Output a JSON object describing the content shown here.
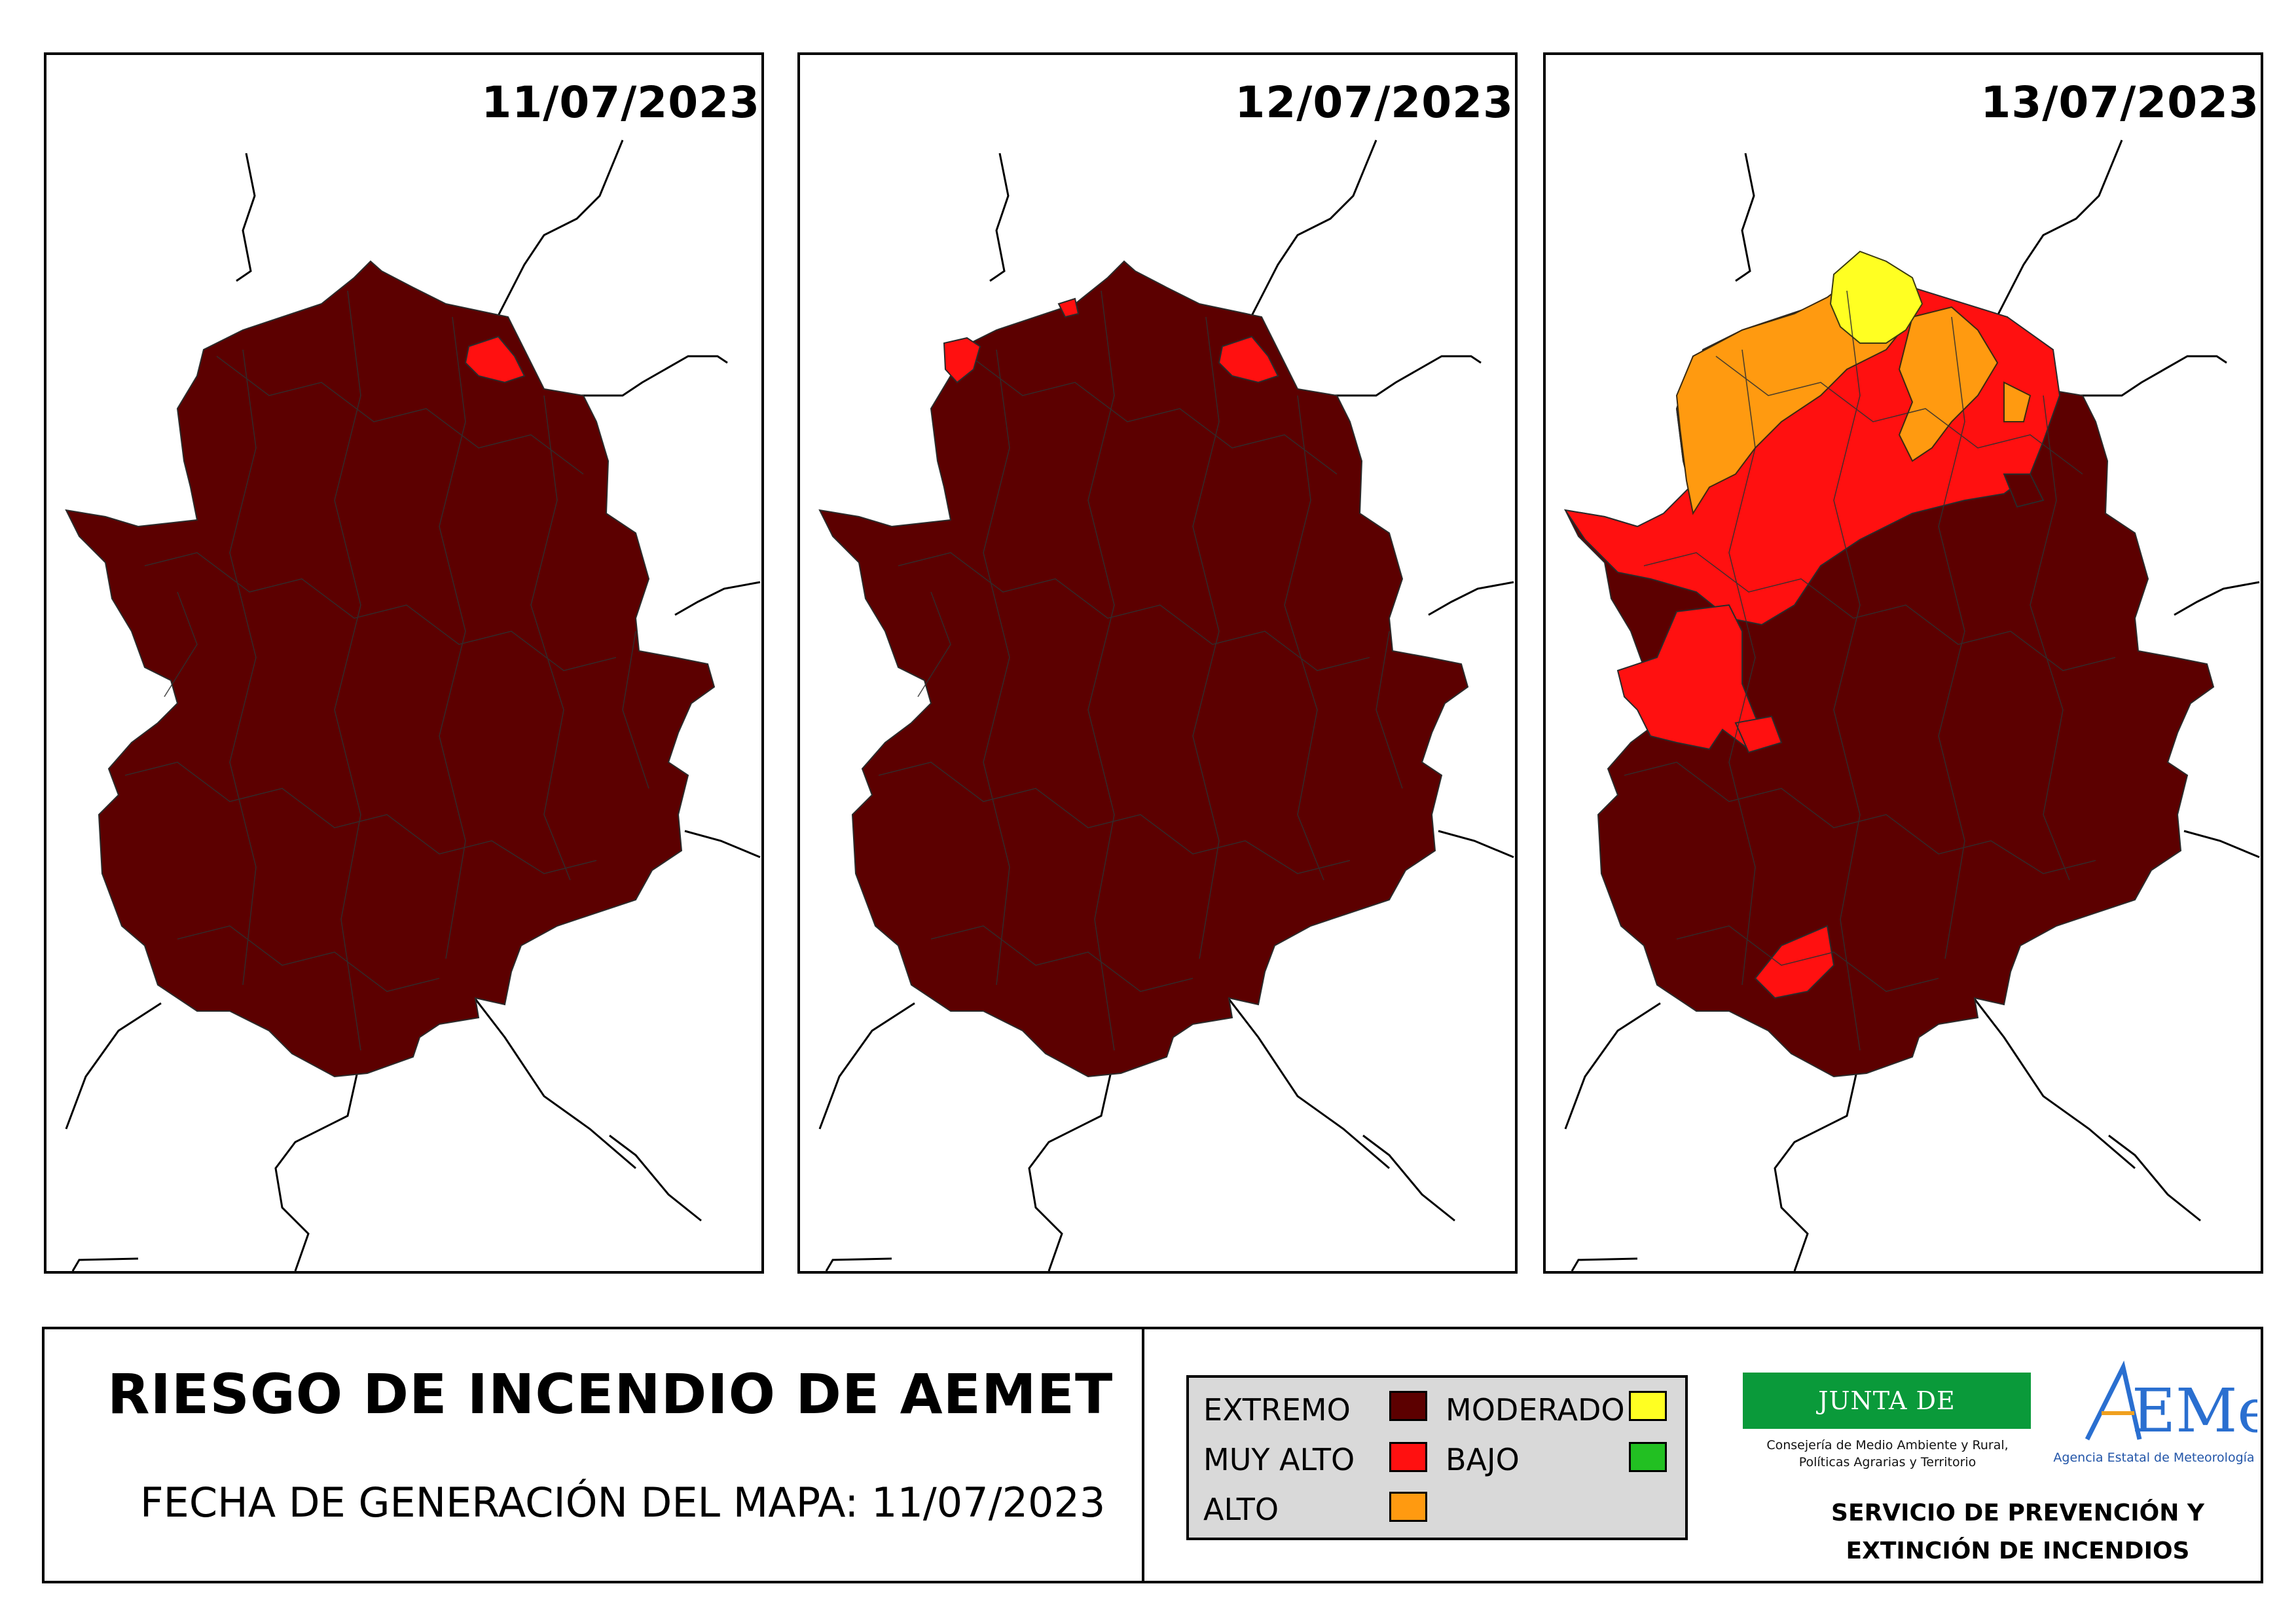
{
  "panels": [
    {
      "date": "11/07/2023"
    },
    {
      "date": "12/07/2023"
    },
    {
      "date": "13/07/2023"
    }
  ],
  "footer": {
    "title": "RIESGO DE INCENDIO DE AEMET",
    "generation_date": "FECHA DE GENERACIÓN DEL MAPA: 11/07/2023"
  },
  "legend": {
    "items": [
      {
        "label": "EXTREMO",
        "color": "#5c0000"
      },
      {
        "label": "MUY ALTO",
        "color": "#ff1010"
      },
      {
        "label": "ALTO",
        "color": "#ff9a10"
      },
      {
        "label": "MODERADO",
        "color": "#ffff22"
      },
      {
        "label": "BAJO",
        "color": "#22c022"
      }
    ]
  },
  "logos": {
    "junta_name": "JUNTA DE EXTREMADURA",
    "junta_sub_1": "Consejería de Medio Ambiente y Rural,",
    "junta_sub_2": "Políticas Agrarias y Territorio",
    "aemet_wordmark": "AEMet",
    "aemet_sub": "Agencia Estatal de Meteorología"
  },
  "service": {
    "line1": "SERVICIO DE PREVENCIÓN Y",
    "line2": "EXTINCIÓN DE INCENDIOS"
  }
}
